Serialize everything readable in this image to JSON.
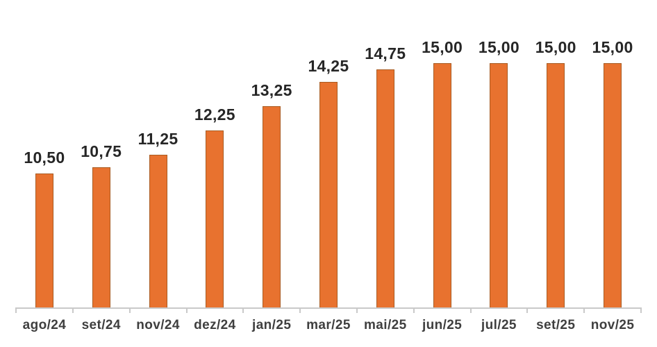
{
  "chart_data": {
    "type": "bar",
    "title": "",
    "xlabel": "",
    "ylabel": "",
    "categories": [
      "ago/24",
      "set/24",
      "nov/24",
      "dez/24",
      "jan/25",
      "mar/25",
      "mai/25",
      "jun/25",
      "jul/25",
      "set/25",
      "nov/25"
    ],
    "values": [
      10.5,
      10.75,
      11.25,
      12.25,
      13.25,
      14.25,
      14.75,
      15.0,
      15.0,
      15.0,
      15.0
    ],
    "value_labels": [
      "10,50",
      "10,75",
      "11,25",
      "12,25",
      "13,25",
      "14,25",
      "14,75",
      "15,00",
      "15,00",
      "15,00",
      "15,00"
    ],
    "ylim": [
      5,
      15.6
    ],
    "grid": false,
    "legend_position": "none",
    "colors": {
      "bar_fill": "#E8722F",
      "bar_border": "#A85B21",
      "value_label": "#262626",
      "axis_label": "#3F3F3F",
      "axis_line": "#C9C9C9",
      "background": "#FFFFFF"
    }
  }
}
